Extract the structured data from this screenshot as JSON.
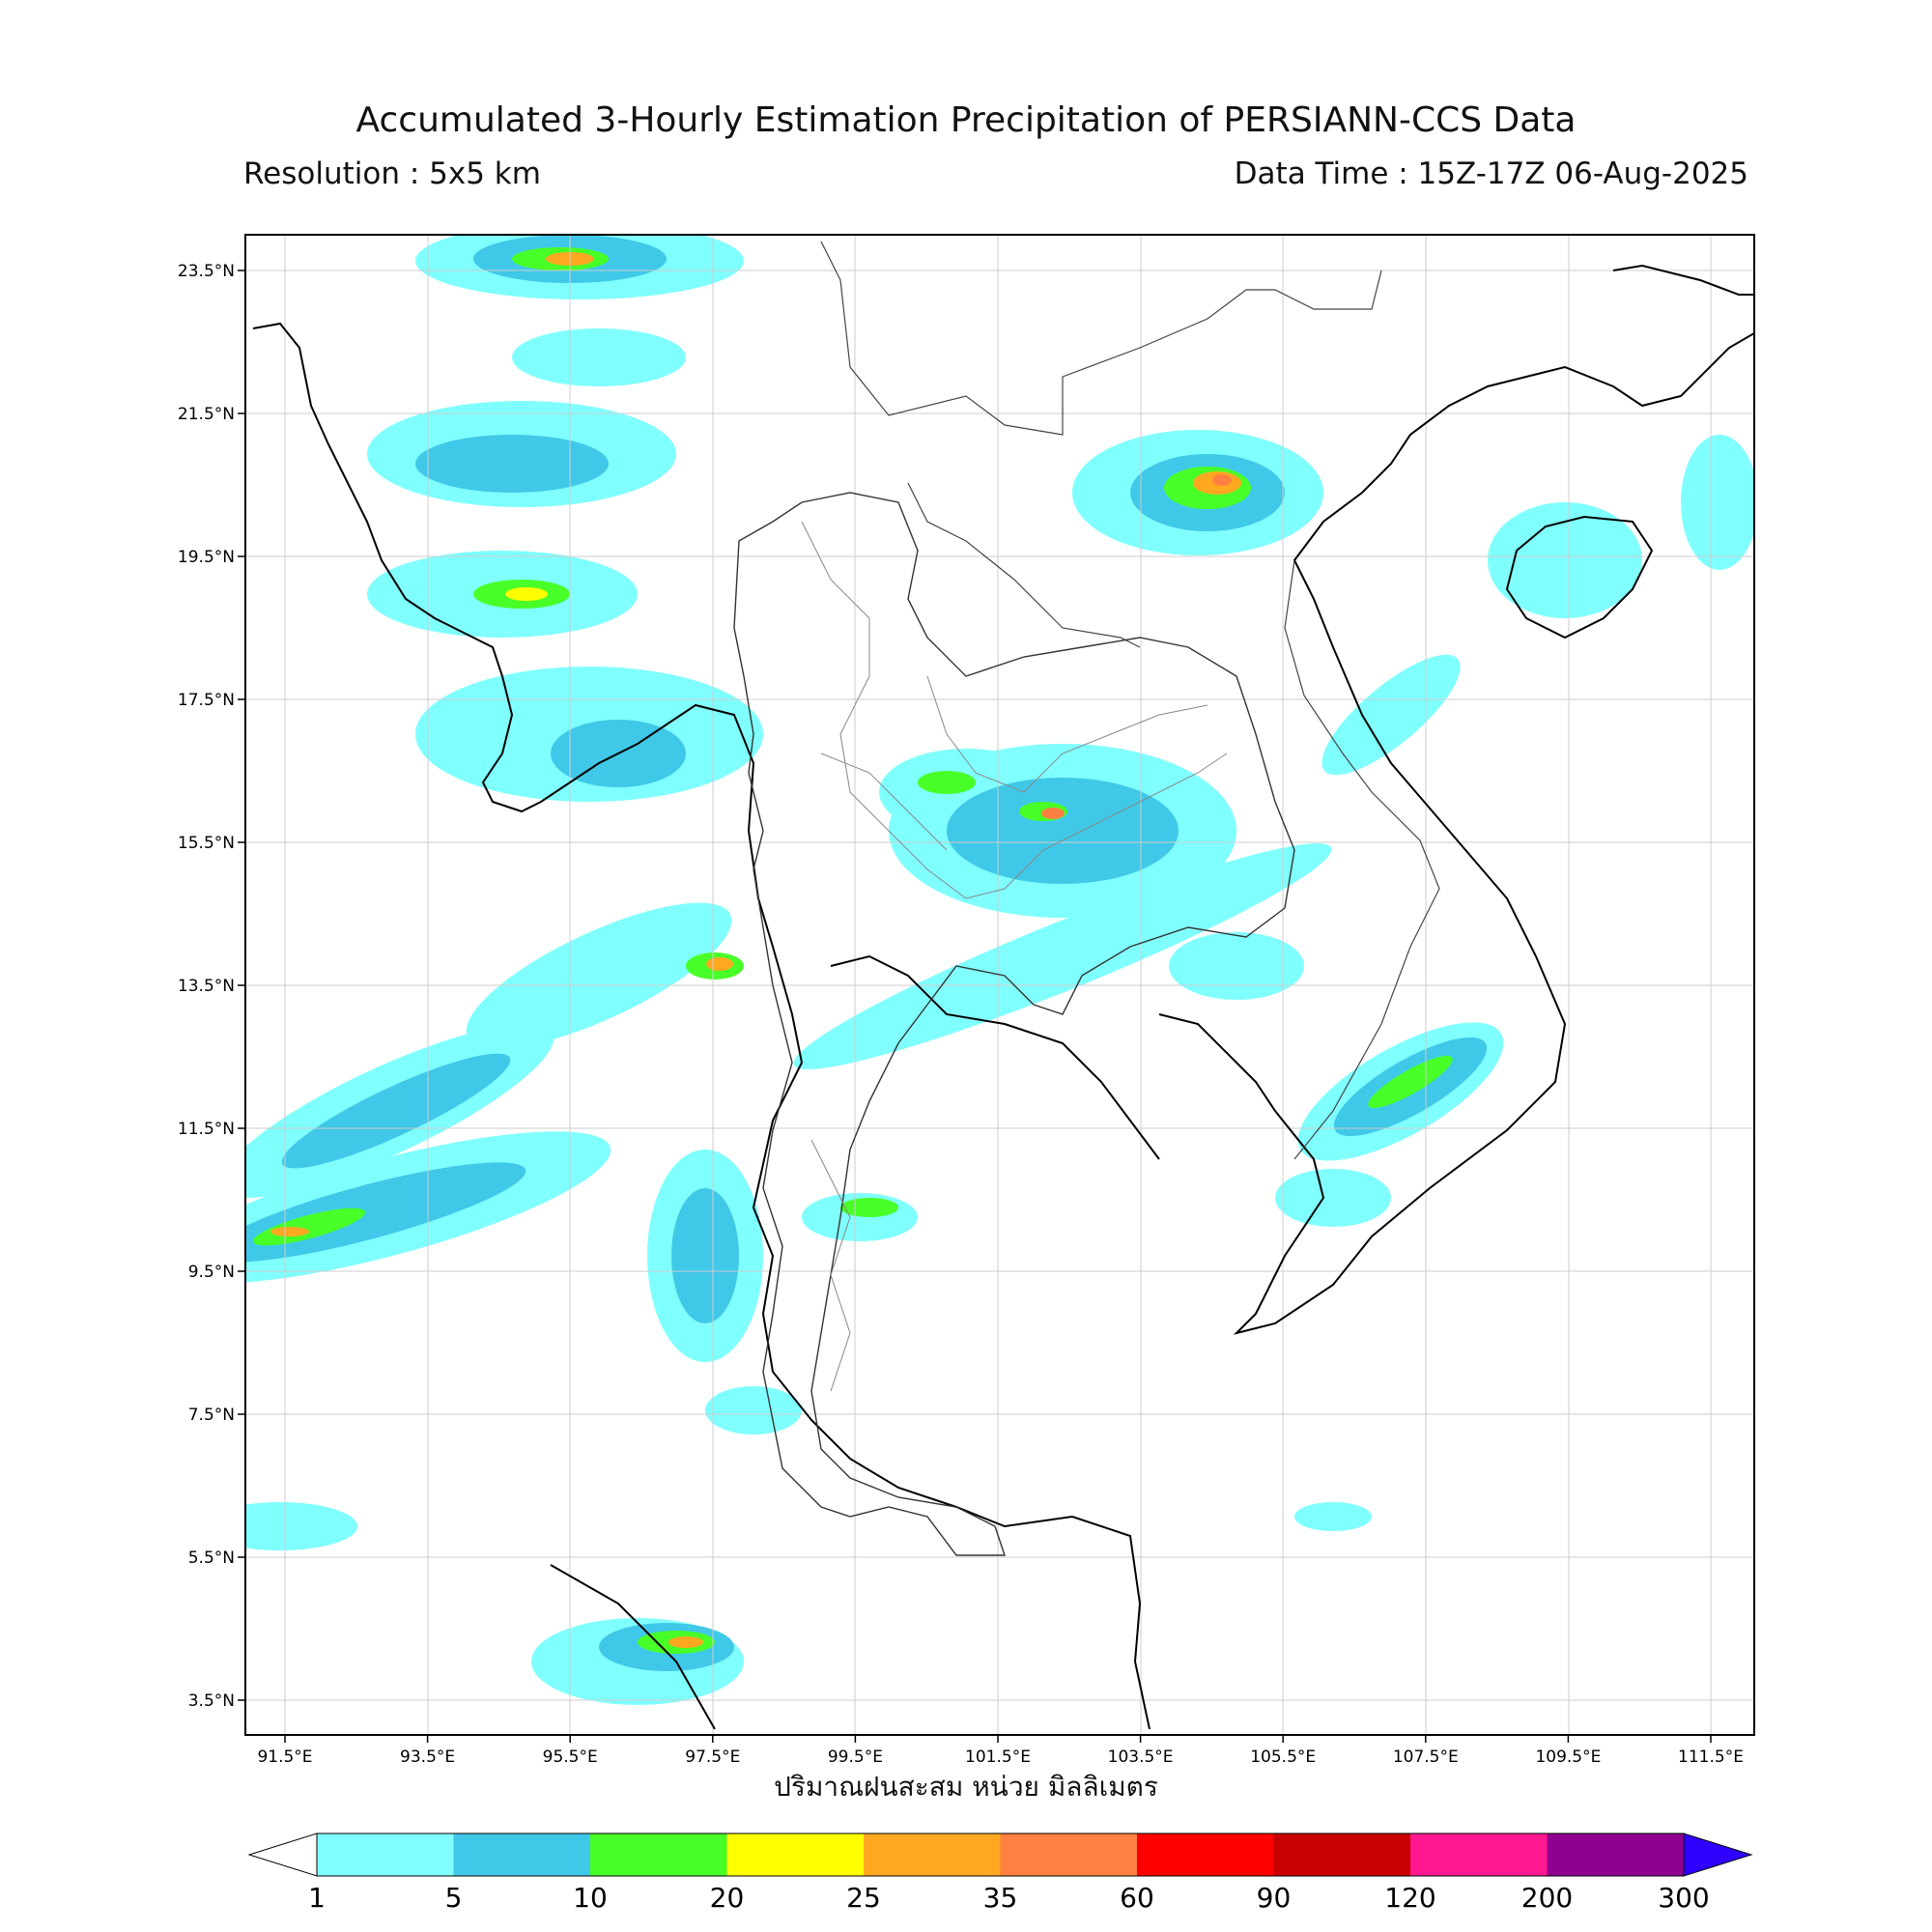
{
  "header": {
    "title": "Accumulated 3-Hourly Estimation Precipitation of PERSIANN-CCS Data",
    "resolution": "Resolution : 5x5 km",
    "data_time": "Data Time : 15Z-17Z 06-Aug-2025"
  },
  "axes": {
    "lon_ticks": [
      "91.5°E",
      "93.5°E",
      "95.5°E",
      "97.5°E",
      "99.5°E",
      "101.5°E",
      "103.5°E",
      "105.5°E",
      "107.5°E",
      "109.5°E",
      "111.5°E"
    ],
    "lat_ticks": [
      "23.5°N",
      "21.5°N",
      "19.5°N",
      "17.5°N",
      "15.5°N",
      "13.5°N",
      "11.5°N",
      "9.5°N",
      "7.5°N",
      "5.5°N",
      "3.5°N"
    ],
    "xlabel": "ปริมาณฝนสะสม หน่วย มิลลิเมตร"
  },
  "colorbar": {
    "ticks": [
      "1",
      "5",
      "10",
      "20",
      "25",
      "35",
      "60",
      "90",
      "120",
      "200",
      "300"
    ],
    "colors": [
      "#80ffff",
      "#40c8e8",
      "#48ff28",
      "#ffff00",
      "#ffa820",
      "#ff8040",
      "#ff0000",
      "#c80000",
      "#ff1890",
      "#900090"
    ],
    "over_color": "#3000ff",
    "under_color": "#ffffff"
  }
}
